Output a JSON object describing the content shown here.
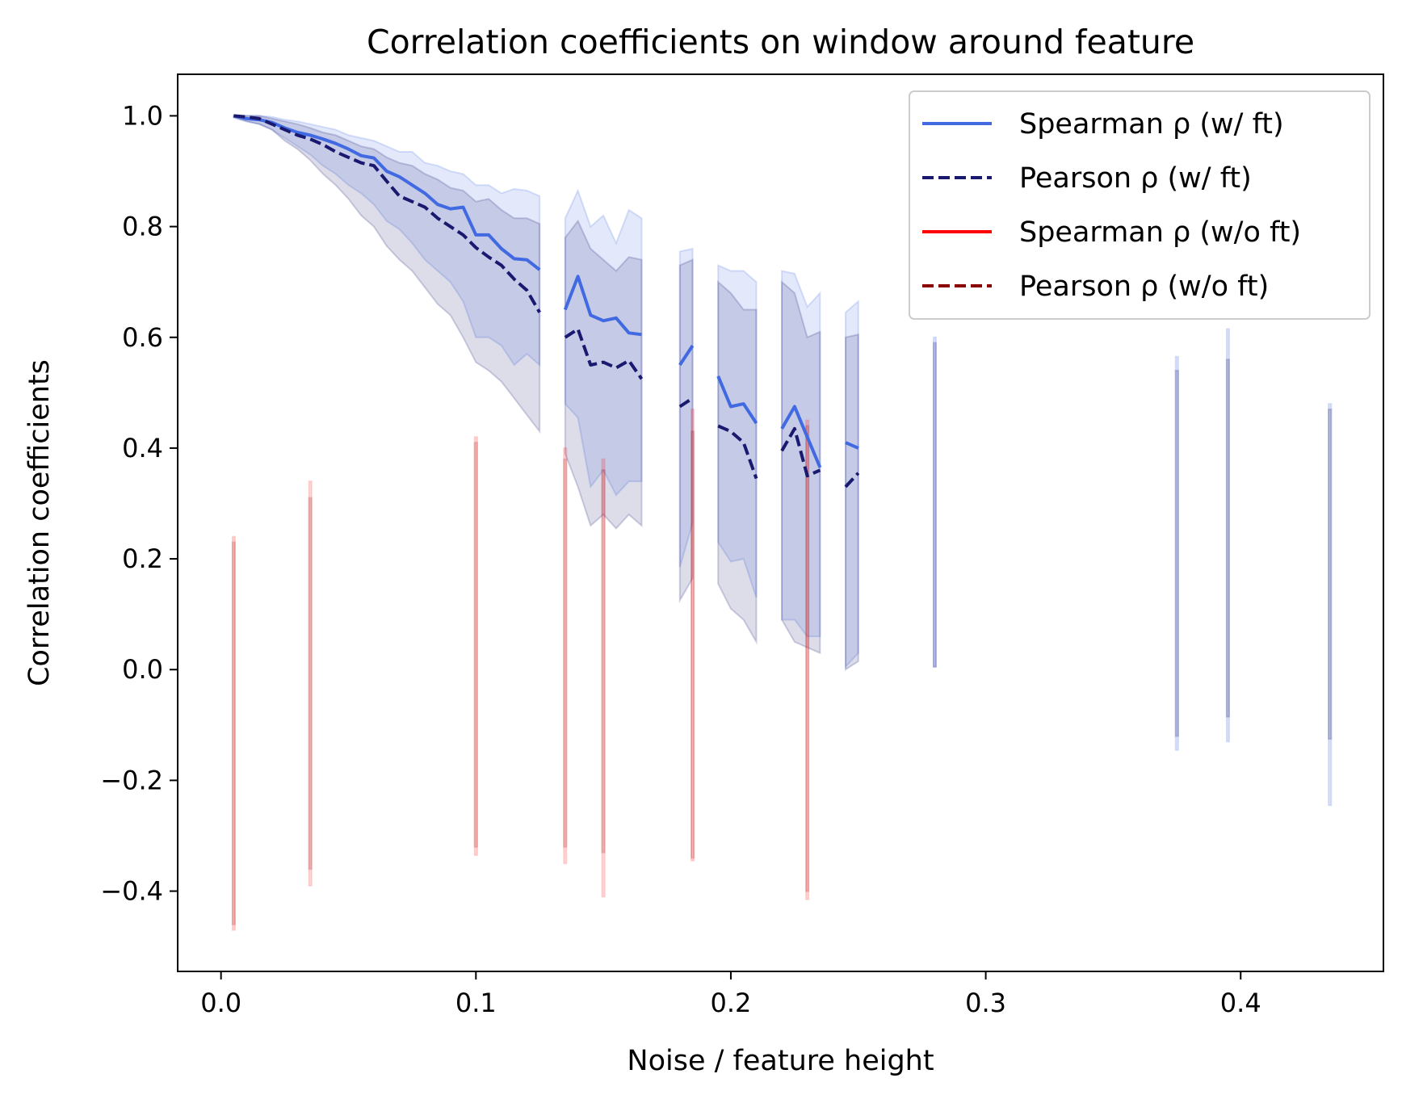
{
  "chart_data": {
    "type": "line",
    "title": "Correlation coefficients on window around feature",
    "xlabel": "Noise / feature height",
    "ylabel": "Correlation coefficients",
    "xlim": [
      -0.017,
      0.456
    ],
    "ylim": [
      -0.545,
      1.075
    ],
    "xticks": [
      0.0,
      0.1,
      0.2,
      0.3,
      0.4
    ],
    "xtick_labels": [
      "0.0",
      "0.1",
      "0.2",
      "0.3",
      "0.4"
    ],
    "yticks": [
      -0.4,
      -0.2,
      0.0,
      0.2,
      0.4,
      0.6,
      0.8,
      1.0
    ],
    "ytick_labels": [
      "−0.4",
      "−0.2",
      "0.0",
      "0.2",
      "0.4",
      "0.6",
      "0.8",
      "1.0"
    ],
    "grid": false,
    "legend_position": "top-right",
    "series": [
      {
        "name": "Spearman ρ (w/ ft)",
        "color": "#4169e1",
        "dash": "solid",
        "segments": [
          {
            "x": [
              0.005,
              0.01,
              0.015,
              0.02,
              0.025,
              0.03,
              0.035,
              0.04,
              0.045,
              0.05,
              0.055,
              0.06,
              0.065,
              0.07,
              0.075,
              0.08,
              0.085,
              0.09,
              0.095,
              0.1,
              0.105,
              0.11,
              0.115,
              0.12,
              0.125
            ],
            "y": [
              1.0,
              0.995,
              0.993,
              0.988,
              0.978,
              0.97,
              0.965,
              0.958,
              0.95,
              0.94,
              0.928,
              0.924,
              0.9,
              0.89,
              0.875,
              0.86,
              0.84,
              0.832,
              0.835,
              0.785,
              0.785,
              0.76,
              0.742,
              0.74,
              0.722
            ]
          },
          {
            "x": [
              0.135,
              0.14,
              0.145,
              0.15,
              0.155,
              0.16,
              0.165
            ],
            "y": [
              0.65,
              0.71,
              0.64,
              0.63,
              0.635,
              0.608,
              0.605
            ]
          },
          {
            "x": [
              0.18,
              0.185
            ],
            "y": [
              0.55,
              0.585
            ]
          },
          {
            "x": [
              0.195,
              0.2,
              0.205,
              0.21
            ],
            "y": [
              0.53,
              0.475,
              0.48,
              0.445
            ]
          },
          {
            "x": [
              0.22,
              0.225,
              0.23,
              0.235
            ],
            "y": [
              0.435,
              0.475,
              0.42,
              0.365
            ]
          },
          {
            "x": [
              0.245,
              0.25
            ],
            "y": [
              0.41,
              0.4
            ]
          }
        ]
      },
      {
        "name": "Pearson ρ (w/ ft)",
        "color": "#191970",
        "dash": "dashed",
        "segments": [
          {
            "x": [
              0.005,
              0.01,
              0.015,
              0.02,
              0.025,
              0.03,
              0.035,
              0.04,
              0.045,
              0.05,
              0.055,
              0.06,
              0.065,
              0.07,
              0.075,
              0.08,
              0.085,
              0.09,
              0.095,
              0.1,
              0.105,
              0.11,
              0.115,
              0.12,
              0.125
            ],
            "y": [
              1.0,
              0.998,
              0.995,
              0.985,
              0.975,
              0.965,
              0.958,
              0.948,
              0.935,
              0.925,
              0.915,
              0.91,
              0.882,
              0.855,
              0.845,
              0.835,
              0.815,
              0.8,
              0.785,
              0.762,
              0.745,
              0.73,
              0.705,
              0.685,
              0.645
            ]
          },
          {
            "x": [
              0.135,
              0.14,
              0.145,
              0.15,
              0.155,
              0.16,
              0.165
            ],
            "y": [
              0.6,
              0.615,
              0.55,
              0.555,
              0.545,
              0.558,
              0.525
            ]
          },
          {
            "x": [
              0.18,
              0.185
            ],
            "y": [
              0.475,
              0.49
            ]
          },
          {
            "x": [
              0.195,
              0.2,
              0.205,
              0.21
            ],
            "y": [
              0.44,
              0.43,
              0.41,
              0.345
            ]
          },
          {
            "x": [
              0.22,
              0.225,
              0.23,
              0.235
            ],
            "y": [
              0.395,
              0.435,
              0.35,
              0.36
            ]
          },
          {
            "x": [
              0.245,
              0.25
            ],
            "y": [
              0.33,
              0.355
            ]
          }
        ]
      },
      {
        "name": "Spearman ρ (w/o ft)",
        "color": "#ff0000",
        "dash": "solid",
        "segments": []
      },
      {
        "name": "Pearson ρ (w/o ft)",
        "color": "#8b0000",
        "dash": "dashed",
        "segments": []
      }
    ],
    "bands": [
      {
        "series": "Spearman ρ (w/ ft)",
        "fill": "#4169e1",
        "opacity": 0.15,
        "segments": [
          {
            "x": [
              0.005,
              0.01,
              0.015,
              0.02,
              0.025,
              0.03,
              0.035,
              0.04,
              0.045,
              0.05,
              0.055,
              0.06,
              0.065,
              0.07,
              0.075,
              0.08,
              0.085,
              0.09,
              0.095,
              0.1,
              0.105,
              0.11,
              0.115,
              0.12,
              0.125
            ],
            "upper": [
              1.0,
              1.0,
              1.0,
              0.998,
              0.993,
              0.99,
              0.985,
              0.98,
              0.975,
              0.965,
              0.96,
              0.955,
              0.945,
              0.935,
              0.935,
              0.915,
              0.91,
              0.9,
              0.895,
              0.875,
              0.875,
              0.86,
              0.868,
              0.865,
              0.855
            ],
            "lower": [
              0.997,
              0.99,
              0.985,
              0.975,
              0.96,
              0.945,
              0.93,
              0.91,
              0.895,
              0.875,
              0.86,
              0.84,
              0.81,
              0.795,
              0.77,
              0.74,
              0.72,
              0.7,
              0.665,
              0.6,
              0.6,
              0.585,
              0.55,
              0.57,
              0.55
            ]
          },
          {
            "x": [
              0.135,
              0.14,
              0.145,
              0.15,
              0.155,
              0.16,
              0.165
            ],
            "upper": [
              0.815,
              0.865,
              0.8,
              0.82,
              0.77,
              0.83,
              0.815
            ],
            "lower": [
              0.48,
              0.455,
              0.33,
              0.36,
              0.315,
              0.34,
              0.34
            ]
          },
          {
            "x": [
              0.18,
              0.185
            ],
            "upper": [
              0.755,
              0.76
            ],
            "lower": [
              0.185,
              0.265
            ]
          },
          {
            "x": [
              0.195,
              0.2,
              0.205,
              0.21
            ],
            "upper": [
              0.73,
              0.72,
              0.72,
              0.7
            ],
            "lower": [
              0.23,
              0.195,
              0.2,
              0.13
            ]
          },
          {
            "x": [
              0.22,
              0.225,
              0.23,
              0.235
            ],
            "upper": [
              0.72,
              0.715,
              0.655,
              0.68
            ],
            "lower": [
              0.09,
              0.09,
              0.06,
              0.06
            ]
          },
          {
            "x": [
              0.245,
              0.25
            ],
            "upper": [
              0.645,
              0.665
            ],
            "lower": [
              0.005,
              0.03
            ]
          },
          {
            "x": [
              0.2795,
              0.2805
            ],
            "upper": [
              0.6,
              0.6
            ],
            "lower": [
              0.005,
              0.005
            ]
          },
          {
            "x": [
              0.3745,
              0.3755
            ],
            "upper": [
              0.565,
              0.565
            ],
            "lower": [
              -0.145,
              -0.145
            ]
          },
          {
            "x": [
              0.3945,
              0.3955
            ],
            "upper": [
              0.615,
              0.615
            ],
            "lower": [
              -0.13,
              -0.13
            ]
          },
          {
            "x": [
              0.4345,
              0.4355
            ],
            "upper": [
              0.48,
              0.48
            ],
            "lower": [
              -0.245,
              -0.245
            ]
          }
        ]
      },
      {
        "series": "Pearson ρ (w/ ft)",
        "fill": "#191970",
        "opacity": 0.15,
        "segments": [
          {
            "x": [
              0.005,
              0.01,
              0.015,
              0.02,
              0.025,
              0.03,
              0.035,
              0.04,
              0.045,
              0.05,
              0.055,
              0.06,
              0.065,
              0.07,
              0.075,
              0.08,
              0.085,
              0.09,
              0.095,
              0.1,
              0.105,
              0.11,
              0.115,
              0.12,
              0.125
            ],
            "upper": [
              1.0,
              1.0,
              1.0,
              0.995,
              0.99,
              0.985,
              0.978,
              0.97,
              0.965,
              0.955,
              0.945,
              0.94,
              0.925,
              0.915,
              0.91,
              0.895,
              0.885,
              0.87,
              0.865,
              0.845,
              0.85,
              0.83,
              0.815,
              0.815,
              0.805
            ],
            "lower": [
              0.997,
              0.99,
              0.985,
              0.975,
              0.955,
              0.94,
              0.92,
              0.895,
              0.875,
              0.85,
              0.82,
              0.8,
              0.765,
              0.74,
              0.72,
              0.69,
              0.66,
              0.64,
              0.6,
              0.555,
              0.54,
              0.52,
              0.49,
              0.46,
              0.43
            ]
          },
          {
            "x": [
              0.135,
              0.14,
              0.145,
              0.15,
              0.155,
              0.16,
              0.165
            ],
            "upper": [
              0.78,
              0.81,
              0.76,
              0.74,
              0.72,
              0.745,
              0.74
            ],
            "lower": [
              0.39,
              0.33,
              0.26,
              0.28,
              0.255,
              0.28,
              0.26
            ]
          },
          {
            "x": [
              0.18,
              0.185
            ],
            "upper": [
              0.73,
              0.74
            ],
            "lower": [
              0.125,
              0.165
            ]
          },
          {
            "x": [
              0.195,
              0.2,
              0.205,
              0.21
            ],
            "upper": [
              0.7,
              0.68,
              0.65,
              0.65
            ],
            "lower": [
              0.155,
              0.11,
              0.09,
              0.05
            ]
          },
          {
            "x": [
              0.22,
              0.225,
              0.23,
              0.235
            ],
            "upper": [
              0.7,
              0.68,
              0.6,
              0.61
            ],
            "lower": [
              0.09,
              0.05,
              0.04,
              0.03
            ]
          },
          {
            "x": [
              0.245,
              0.25
            ],
            "upper": [
              0.6,
              0.605
            ],
            "lower": [
              0.0,
              0.015
            ]
          },
          {
            "x": [
              0.2795,
              0.2805
            ],
            "upper": [
              0.59,
              0.59
            ],
            "lower": [
              0.005,
              0.005
            ]
          },
          {
            "x": [
              0.3745,
              0.3755
            ],
            "upper": [
              0.54,
              0.54
            ],
            "lower": [
              -0.12,
              -0.12
            ]
          },
          {
            "x": [
              0.3945,
              0.3955
            ],
            "upper": [
              0.56,
              0.56
            ],
            "lower": [
              -0.085,
              -0.085
            ]
          },
          {
            "x": [
              0.4345,
              0.4355
            ],
            "upper": [
              0.47,
              0.47
            ],
            "lower": [
              -0.125,
              -0.125
            ]
          }
        ]
      },
      {
        "series": "Spearman ρ (w/o ft)",
        "fill": "#ff0000",
        "opacity": 0.12,
        "segments": [
          {
            "x": [
              0.0045,
              0.0055
            ],
            "upper": [
              0.24,
              0.24
            ],
            "lower": [
              -0.47,
              -0.47
            ]
          },
          {
            "x": [
              0.0345,
              0.0355
            ],
            "upper": [
              0.34,
              0.34
            ],
            "lower": [
              -0.39,
              -0.39
            ]
          },
          {
            "x": [
              0.0995,
              0.1005
            ],
            "upper": [
              0.42,
              0.42
            ],
            "lower": [
              -0.335,
              -0.335
            ]
          },
          {
            "x": [
              0.1345,
              0.1355
            ],
            "upper": [
              0.4,
              0.4
            ],
            "lower": [
              -0.35,
              -0.35
            ]
          },
          {
            "x": [
              0.1495,
              0.1505
            ],
            "upper": [
              0.38,
              0.38
            ],
            "lower": [
              -0.41,
              -0.41
            ]
          },
          {
            "x": [
              0.1845,
              0.1855
            ],
            "upper": [
              0.47,
              0.47
            ],
            "lower": [
              -0.345,
              -0.345
            ]
          },
          {
            "x": [
              0.2295,
              0.2305
            ],
            "upper": [
              0.45,
              0.45
            ],
            "lower": [
              -0.415,
              -0.415
            ]
          }
        ]
      },
      {
        "series": "Pearson ρ (w/o ft)",
        "fill": "#8b0000",
        "opacity": 0.12,
        "segments": [
          {
            "x": [
              0.0045,
              0.0055
            ],
            "upper": [
              0.23,
              0.23
            ],
            "lower": [
              -0.46,
              -0.46
            ]
          },
          {
            "x": [
              0.0345,
              0.0355
            ],
            "upper": [
              0.31,
              0.31
            ],
            "lower": [
              -0.36,
              -0.36
            ]
          },
          {
            "x": [
              0.0995,
              0.1005
            ],
            "upper": [
              0.41,
              0.41
            ],
            "lower": [
              -0.32,
              -0.32
            ]
          },
          {
            "x": [
              0.1345,
              0.1355
            ],
            "upper": [
              0.38,
              0.38
            ],
            "lower": [
              -0.32,
              -0.32
            ]
          },
          {
            "x": [
              0.1495,
              0.1505
            ],
            "upper": [
              0.36,
              0.36
            ],
            "lower": [
              -0.33,
              -0.33
            ]
          },
          {
            "x": [
              0.1845,
              0.1855
            ],
            "upper": [
              0.43,
              0.43
            ],
            "lower": [
              -0.34,
              -0.34
            ]
          },
          {
            "x": [
              0.2295,
              0.2305
            ],
            "upper": [
              0.44,
              0.44
            ],
            "lower": [
              -0.4,
              -0.4
            ]
          }
        ]
      }
    ]
  }
}
